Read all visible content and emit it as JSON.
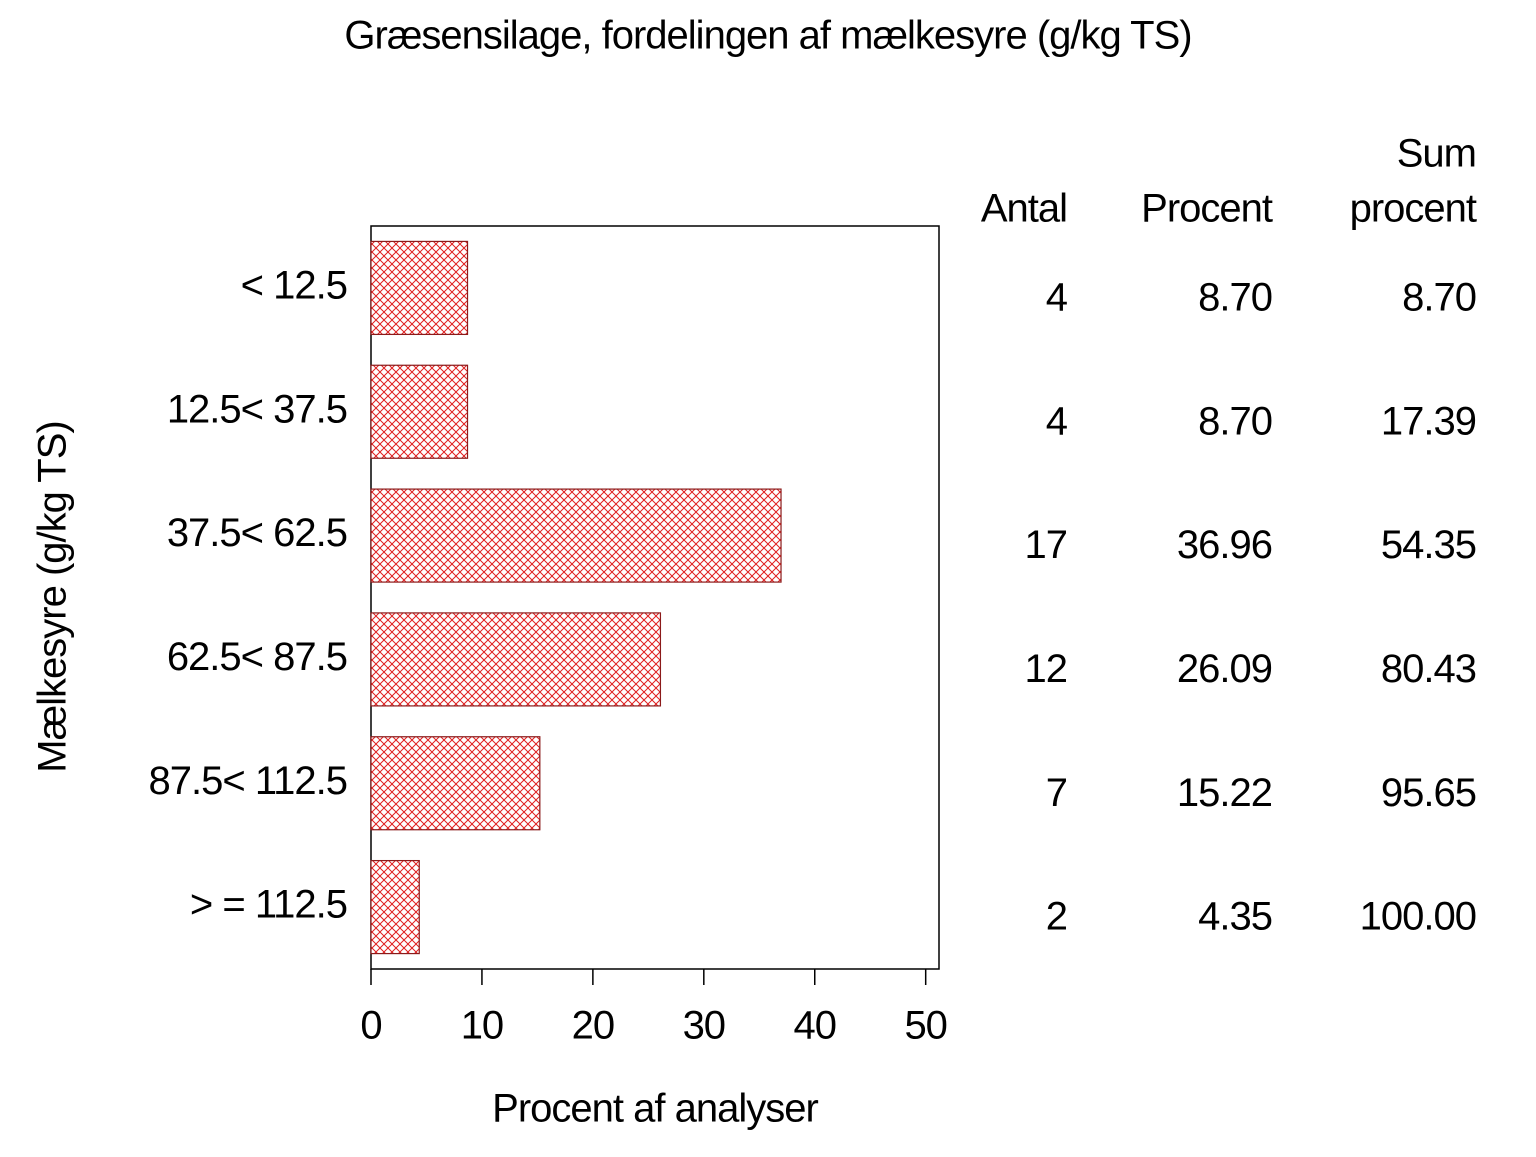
{
  "chart_data": {
    "type": "bar",
    "orientation": "horizontal",
    "title": "Græsensilage, fordelingen af mælkesyre (g/kg TS)",
    "x_label": "Procent af analyser",
    "y_label": "Mælkesyre (g/kg TS)",
    "categories": [
      "< 12.5",
      "12.5< 37.5",
      "37.5< 62.5",
      "62.5< 87.5",
      "87.5< 112.5",
      "> = 112.5"
    ],
    "values": [
      8.7,
      8.7,
      36.96,
      26.09,
      15.22,
      4.35
    ],
    "value_labels": [
      "8.70",
      "8.70",
      "36.96",
      "26.09",
      "15.22",
      "4.35"
    ],
    "color": "#e02020",
    "edge_color": "#8b1a1a",
    "xlim": [
      0,
      51.2
    ],
    "xticks": [
      0,
      10,
      20,
      30,
      40,
      50
    ],
    "table_columns": [
      [
        "Antal"
      ],
      [
        "Procent"
      ],
      [
        "Sum",
        "procent"
      ]
    ],
    "counts": [
      4,
      4,
      17,
      12,
      7,
      2
    ],
    "sum_percent_labels": [
      "8.70",
      "17.39",
      "54.35",
      "80.43",
      "95.65",
      "100.00"
    ]
  }
}
